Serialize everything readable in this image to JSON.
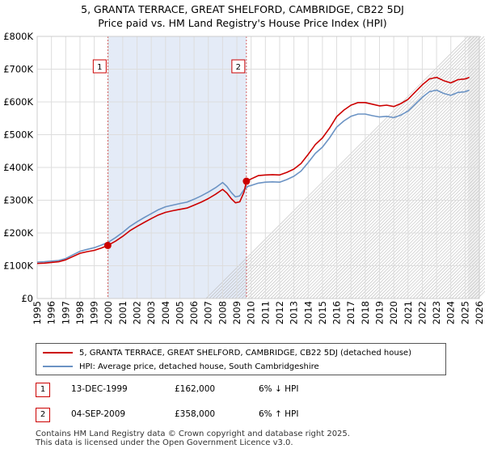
{
  "chart_data": {
    "type": "line",
    "title": "5, GRANTA TERRACE, GREAT SHELFORD, CAMBRIDGE, CB22 5DJ",
    "subtitle": "Price paid vs. HM Land Registry's House Price Index (HPI)",
    "xlim": [
      1995,
      2026
    ],
    "ylim": [
      0,
      800000
    ],
    "x_ticks": [
      "1995",
      "1996",
      "1997",
      "1998",
      "1999",
      "2000",
      "2001",
      "2002",
      "2003",
      "2004",
      "2005",
      "2006",
      "2007",
      "2008",
      "2009",
      "2010",
      "2011",
      "2012",
      "2013",
      "2014",
      "2015",
      "2016",
      "2017",
      "2018",
      "2019",
      "2020",
      "2021",
      "2022",
      "2023",
      "2024",
      "2025",
      "2026"
    ],
    "y_ticks": [
      {
        "value": 0,
        "label": "£0"
      },
      {
        "value": 100000,
        "label": "£100K"
      },
      {
        "value": 200000,
        "label": "£200K"
      },
      {
        "value": 300000,
        "label": "£300K"
      },
      {
        "value": 400000,
        "label": "£400K"
      },
      {
        "value": 500000,
        "label": "£500K"
      },
      {
        "value": 600000,
        "label": "£600K"
      },
      {
        "value": 700000,
        "label": "£700K"
      },
      {
        "value": 800000,
        "label": "£800K"
      }
    ],
    "shaded_region": [
      1999.95,
      2009.67
    ],
    "forecast_from": 2025.2,
    "series": [
      {
        "name": "5, GRANTA TERRACE, GREAT SHELFORD, CAMBRIDGE, CB22 5DJ (detached house)",
        "color": "#cc0000",
        "x": [
          1995.0,
          1995.5,
          1996.0,
          1996.5,
          1997.0,
          1997.5,
          1998.0,
          1998.5,
          1999.0,
          1999.5,
          1999.95,
          2000.5,
          2001.0,
          2001.5,
          2002.0,
          2002.5,
          2003.0,
          2003.5,
          2004.0,
          2004.5,
          2005.0,
          2005.5,
          2006.0,
          2006.5,
          2007.0,
          2007.5,
          2008.0,
          2008.3,
          2008.6,
          2008.9,
          2009.2,
          2009.5,
          2009.67,
          2010.0,
          2010.5,
          2011.0,
          2011.5,
          2012.0,
          2012.5,
          2013.0,
          2013.5,
          2014.0,
          2014.5,
          2015.0,
          2015.5,
          2016.0,
          2016.5,
          2017.0,
          2017.5,
          2018.0,
          2018.5,
          2019.0,
          2019.5,
          2020.0,
          2020.5,
          2021.0,
          2021.5,
          2022.0,
          2022.5,
          2023.0,
          2023.5,
          2024.0,
          2024.5,
          2025.0,
          2025.3
        ],
        "values": [
          107000,
          108000,
          110000,
          112000,
          118000,
          128000,
          138000,
          143000,
          147000,
          154000,
          162000,
          175000,
          190000,
          207000,
          220000,
          232000,
          244000,
          255000,
          263000,
          268000,
          272000,
          276000,
          285000,
          294000,
          305000,
          318000,
          333000,
          322000,
          305000,
          292000,
          295000,
          325000,
          358000,
          365000,
          375000,
          377000,
          378000,
          377000,
          385000,
          395000,
          412000,
          440000,
          470000,
          490000,
          520000,
          555000,
          575000,
          590000,
          598000,
          598000,
          593000,
          588000,
          590000,
          586000,
          595000,
          608000,
          630000,
          652000,
          670000,
          675000,
          665000,
          658000,
          668000,
          670000,
          675000
        ]
      },
      {
        "name": "HPI: Average price, detached house, South Cambridgeshire",
        "color": "#6b93c4",
        "x": [
          1995.0,
          1995.5,
          1996.0,
          1996.5,
          1997.0,
          1997.5,
          1998.0,
          1998.5,
          1999.0,
          1999.5,
          2000.0,
          2000.5,
          2001.0,
          2001.5,
          2002.0,
          2002.5,
          2003.0,
          2003.5,
          2004.0,
          2004.5,
          2005.0,
          2005.5,
          2006.0,
          2006.5,
          2007.0,
          2007.5,
          2008.0,
          2008.3,
          2008.6,
          2008.9,
          2009.2,
          2009.5,
          2009.8,
          2010.0,
          2010.5,
          2011.0,
          2011.5,
          2012.0,
          2012.5,
          2013.0,
          2013.5,
          2014.0,
          2014.5,
          2015.0,
          2015.5,
          2016.0,
          2016.5,
          2017.0,
          2017.5,
          2018.0,
          2018.5,
          2019.0,
          2019.5,
          2020.0,
          2020.5,
          2021.0,
          2021.5,
          2022.0,
          2022.5,
          2023.0,
          2023.5,
          2024.0,
          2024.5,
          2025.0,
          2025.3
        ],
        "values": [
          111000,
          112000,
          114000,
          116000,
          122000,
          133000,
          144000,
          150000,
          155000,
          163000,
          172000,
          186000,
          202000,
          220000,
          234000,
          247000,
          259000,
          271000,
          280000,
          285000,
          290000,
          294000,
          303000,
          313000,
          325000,
          338000,
          354000,
          342000,
          324000,
          310000,
          313000,
          332000,
          343000,
          345000,
          352000,
          355000,
          356000,
          355000,
          363000,
          373000,
          389000,
          415000,
          443000,
          462000,
          490000,
          523000,
          542000,
          556000,
          563000,
          563000,
          558000,
          554000,
          556000,
          552000,
          560000,
          572000,
          593000,
          614000,
          631000,
          636000,
          626000,
          620000,
          629000,
          631000,
          636000
        ]
      }
    ],
    "annotations": [
      {
        "label": "1",
        "x": 1999.95,
        "value": 162000
      },
      {
        "label": "2",
        "x": 2009.67,
        "value": 358000
      }
    ]
  },
  "legend": {
    "items": [
      {
        "label": "5, GRANTA TERRACE, GREAT SHELFORD, CAMBRIDGE, CB22 5DJ (detached house)",
        "color": "#cc0000"
      },
      {
        "label": "HPI: Average price, detached house, South Cambridgeshire",
        "color": "#6b93c4"
      }
    ]
  },
  "sales": [
    {
      "num": "1",
      "date": "13-DEC-1999",
      "price": "£162,000",
      "hpi": "6% ↓ HPI"
    },
    {
      "num": "2",
      "date": "04-SEP-2009",
      "price": "£358,000",
      "hpi": "6% ↑ HPI"
    }
  ],
  "footer": {
    "line1": "Contains HM Land Registry data © Crown copyright and database right 2025.",
    "line2": "This data is licensed under the Open Government Licence v3.0."
  }
}
